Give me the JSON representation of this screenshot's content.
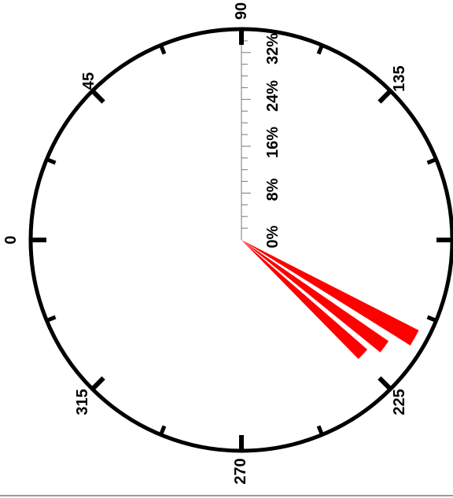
{
  "chart_data": {
    "type": "rose",
    "title": "",
    "direction_labels": [
      "0",
      "45",
      "90",
      "135",
      "225",
      "270",
      "315"
    ],
    "radial_ticks": [
      "0%",
      "8%",
      "16%",
      "24%",
      "32%"
    ],
    "radial_max": 36,
    "series": [
      {
        "direction_start": 207,
        "direction_end": 212,
        "value": 34
      },
      {
        "direction_start": 214.5,
        "direction_end": 219,
        "value": 30.5
      },
      {
        "direction_start": 221,
        "direction_end": 225.5,
        "value": 28.5
      }
    ],
    "colors": {
      "petal": "#ff0000",
      "circle": "#000000",
      "axis": "#777777"
    }
  }
}
